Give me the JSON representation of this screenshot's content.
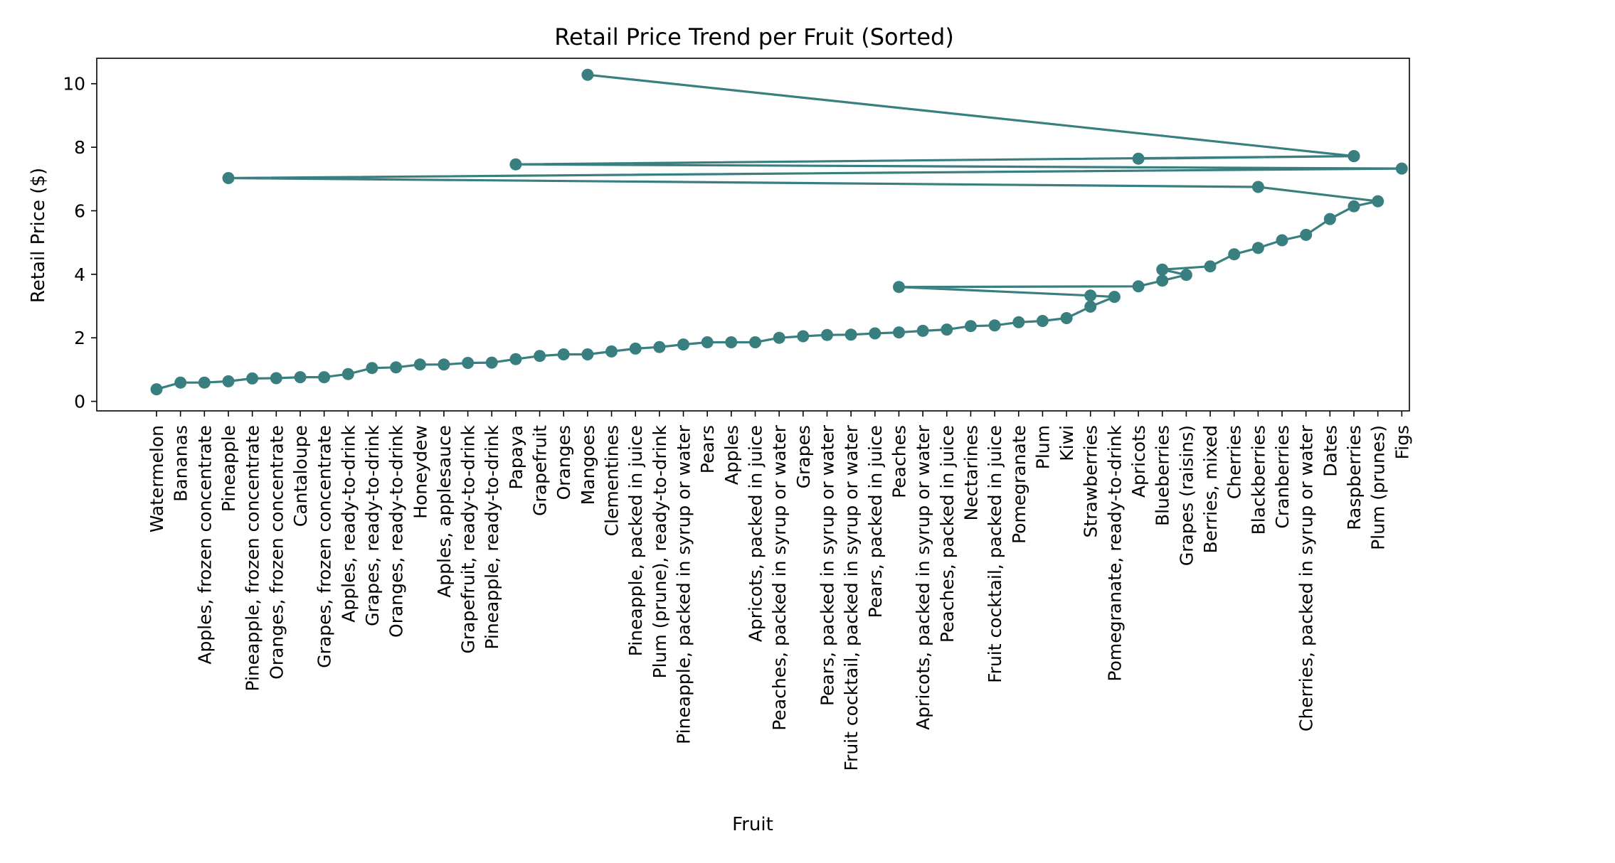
{
  "chart_data": {
    "type": "line",
    "title": "Retail Price Trend per Fruit (Sorted)",
    "xlabel": "Fruit",
    "ylabel": "Retail Price ($)",
    "ylim": [
      -0.3,
      10.8
    ],
    "yticks": [
      0,
      2,
      4,
      6,
      8,
      10
    ],
    "grid": false,
    "line_color": "#3a7f80",
    "categories": [
      "Watermelon",
      "Bananas",
      "Apples, frozen concentrate",
      "Pineapple",
      "Pineapple, frozen concentrate",
      "Oranges, frozen concentrate",
      "Cantaloupe",
      "Grapes, frozen concentrate",
      "Apples, ready-to-drink",
      "Grapes, ready-to-drink",
      "Oranges, ready-to-drink",
      "Honeydew",
      "Apples, applesauce",
      "Grapefruit, ready-to-drink",
      "Pineapple, ready-to-drink",
      "Papaya",
      "Grapefruit",
      "Oranges",
      "Mangoes",
      "Clementines",
      "Pineapple, packed in juice",
      "Plum (prune), ready-to-drink",
      "Pineapple, packed in syrup or water",
      "Pears",
      "Apples",
      "Apricots, packed in juice",
      "Peaches, packed in syrup or water",
      "Grapes",
      "Pears, packed in syrup or water",
      "Fruit cocktail, packed in syrup or water",
      "Pears, packed in juice",
      "Peaches",
      "Apricots, packed in syrup or water",
      "Peaches, packed in juice",
      "Nectarines",
      "Fruit cocktail, packed in juice",
      "Pomegranate",
      "Plum",
      "Kiwi",
      "Strawberries",
      "Pomegranate, ready-to-drink",
      "Apricots",
      "Blueberries",
      "Grapes (raisins)",
      "Berries, mixed",
      "Cherries",
      "Blackberries",
      "Cranberries",
      "Cherries, packed in syrup or water",
      "Dates",
      "Raspberries",
      "Plum (prunes)",
      "Figs"
    ],
    "series": [
      {
        "points": [
          {
            "x": "Watermelon",
            "y": 0.38
          },
          {
            "x": "Bananas",
            "y": 0.59
          },
          {
            "x": "Apples, frozen concentrate",
            "y": 0.59
          },
          {
            "x": "Pineapple",
            "y": 0.63
          },
          {
            "x": "Pineapple, frozen concentrate",
            "y": 0.72
          },
          {
            "x": "Oranges, frozen concentrate",
            "y": 0.73
          },
          {
            "x": "Cantaloupe",
            "y": 0.76
          },
          {
            "x": "Grapes, frozen concentrate",
            "y": 0.76
          },
          {
            "x": "Apples, ready-to-drink",
            "y": 0.86
          },
          {
            "x": "Grapes, ready-to-drink",
            "y": 1.05
          },
          {
            "x": "Oranges, ready-to-drink",
            "y": 1.07
          },
          {
            "x": "Honeydew",
            "y": 1.16
          },
          {
            "x": "Apples, applesauce",
            "y": 1.16
          },
          {
            "x": "Grapefruit, ready-to-drink",
            "y": 1.21
          },
          {
            "x": "Pineapple, ready-to-drink",
            "y": 1.22
          },
          {
            "x": "Papaya",
            "y": 1.33
          },
          {
            "x": "Grapefruit",
            "y": 1.43
          },
          {
            "x": "Oranges",
            "y": 1.48
          },
          {
            "x": "Mangoes",
            "y": 1.48
          },
          {
            "x": "Clementines",
            "y": 1.57
          },
          {
            "x": "Pineapple, packed in juice",
            "y": 1.66
          },
          {
            "x": "Plum (prune), ready-to-drink",
            "y": 1.71
          },
          {
            "x": "Pineapple, packed in syrup or water",
            "y": 1.79
          },
          {
            "x": "Pears",
            "y": 1.86
          },
          {
            "x": "Apples",
            "y": 1.86
          },
          {
            "x": "Apricots, packed in juice",
            "y": 1.86
          },
          {
            "x": "Peaches, packed in syrup or water",
            "y": 2.0
          },
          {
            "x": "Grapes",
            "y": 2.05
          },
          {
            "x": "Pears, packed in syrup or water",
            "y": 2.09
          },
          {
            "x": "Fruit cocktail, packed in syrup or water",
            "y": 2.1
          },
          {
            "x": "Pears, packed in juice",
            "y": 2.14
          },
          {
            "x": "Peaches",
            "y": 2.17
          },
          {
            "x": "Apricots, packed in syrup or water",
            "y": 2.22
          },
          {
            "x": "Peaches, packed in juice",
            "y": 2.26
          },
          {
            "x": "Nectarines",
            "y": 2.37
          },
          {
            "x": "Fruit cocktail, packed in juice",
            "y": 2.39
          },
          {
            "x": "Pomegranate",
            "y": 2.49
          },
          {
            "x": "Plum",
            "y": 2.53
          },
          {
            "x": "Kiwi",
            "y": 2.62
          },
          {
            "x": "Strawberries",
            "y": 2.98
          },
          {
            "x": "Pomegranate, ready-to-drink",
            "y": 3.29
          },
          {
            "x": "Strawberries",
            "y": 3.33
          },
          {
            "x": "Peaches",
            "y": 3.6
          },
          {
            "x": "Apricots",
            "y": 3.62
          },
          {
            "x": "Blueberries",
            "y": 3.8
          },
          {
            "x": "Grapes (raisins)",
            "y": 3.98
          },
          {
            "x": "Blueberries",
            "y": 4.15
          },
          {
            "x": "Berries, mixed",
            "y": 4.25
          },
          {
            "x": "Cherries",
            "y": 4.63
          },
          {
            "x": "Blackberries",
            "y": 4.83
          },
          {
            "x": "Cranberries",
            "y": 5.07
          },
          {
            "x": "Cherries, packed in syrup or water",
            "y": 5.24
          },
          {
            "x": "Dates",
            "y": 5.74
          },
          {
            "x": "Raspberries",
            "y": 6.14
          },
          {
            "x": "Plum (prunes)",
            "y": 6.3
          },
          {
            "x": "Blackberries",
            "y": 6.75
          },
          {
            "x": "Pineapple",
            "y": 7.03
          },
          {
            "x": "Figs",
            "y": 7.33
          },
          {
            "x": "Papaya",
            "y": 7.46
          },
          {
            "x": "Raspberries",
            "y": 7.72
          },
          {
            "x": "Apricots",
            "y": 7.64
          },
          {
            "x": "Raspberries",
            "y": 7.72
          },
          {
            "x": "Mangoes",
            "y": 10.28
          }
        ]
      }
    ]
  }
}
